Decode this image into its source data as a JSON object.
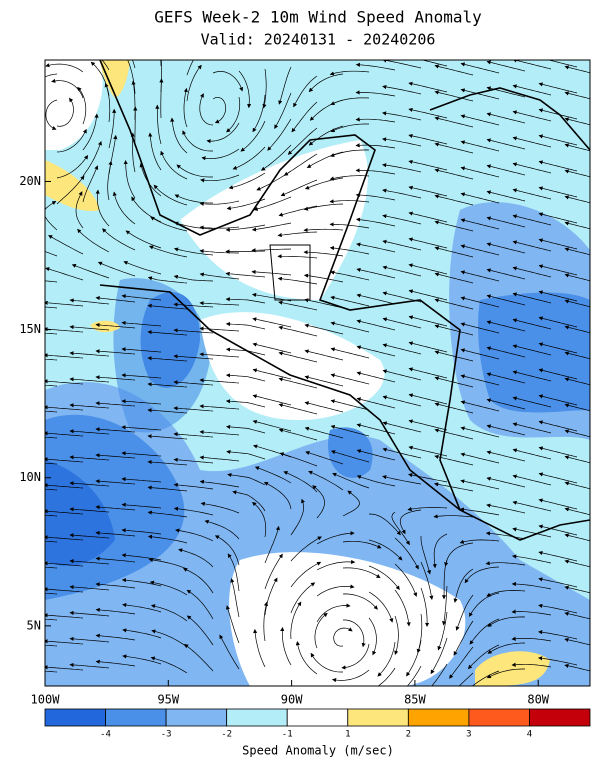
{
  "title": "GEFS Week-2 10m Wind Speed Anomaly",
  "subtitle": "Valid: 20240131 - 20240206",
  "lon_range": [
    -100,
    -77.9
  ],
  "lat_range": [
    2.97,
    24.1
  ],
  "lon_ticks": [
    {
      "value": -100,
      "label": "100W"
    },
    {
      "value": -95,
      "label": "95W"
    },
    {
      "value": -90,
      "label": "90W"
    },
    {
      "value": -85,
      "label": "85W"
    },
    {
      "value": -80,
      "label": "80W"
    }
  ],
  "lat_ticks": [
    {
      "value": 20,
      "label": "20N"
    },
    {
      "value": 15,
      "label": "15N"
    },
    {
      "value": 10,
      "label": "10N"
    },
    {
      "value": 5,
      "label": "5N"
    }
  ],
  "colorbar": {
    "label": "Speed Anomaly (m/sec)",
    "ticks": [
      -4,
      -3,
      -2,
      -1,
      1,
      2,
      3,
      4
    ],
    "colors": [
      "#2268dc",
      "#4a8fe8",
      "#80b6f2",
      "#b3eef8",
      "#ffffff",
      "#fde77c",
      "#ffa300",
      "#ff5a1e",
      "#c4000a"
    ]
  }
}
